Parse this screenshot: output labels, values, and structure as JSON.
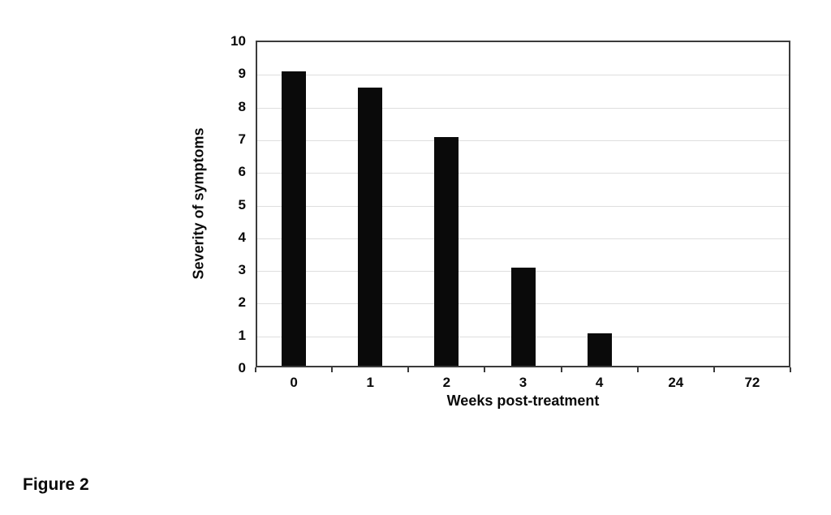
{
  "figure": {
    "caption": "Figure 2"
  },
  "chart_data": {
    "type": "bar",
    "categories": [
      "0",
      "1",
      "2",
      "3",
      "4",
      "24",
      "72"
    ],
    "values": [
      9,
      8.5,
      7,
      3,
      1,
      0,
      0
    ],
    "title": "",
    "xlabel": "Weeks post-treatment",
    "ylabel": "Severity of symptoms",
    "ylim": [
      0,
      10
    ],
    "ytick_step": 1,
    "grid": true,
    "legend": "none",
    "bar_color": "#0a0a0a",
    "gridline_color": "#dedede"
  }
}
